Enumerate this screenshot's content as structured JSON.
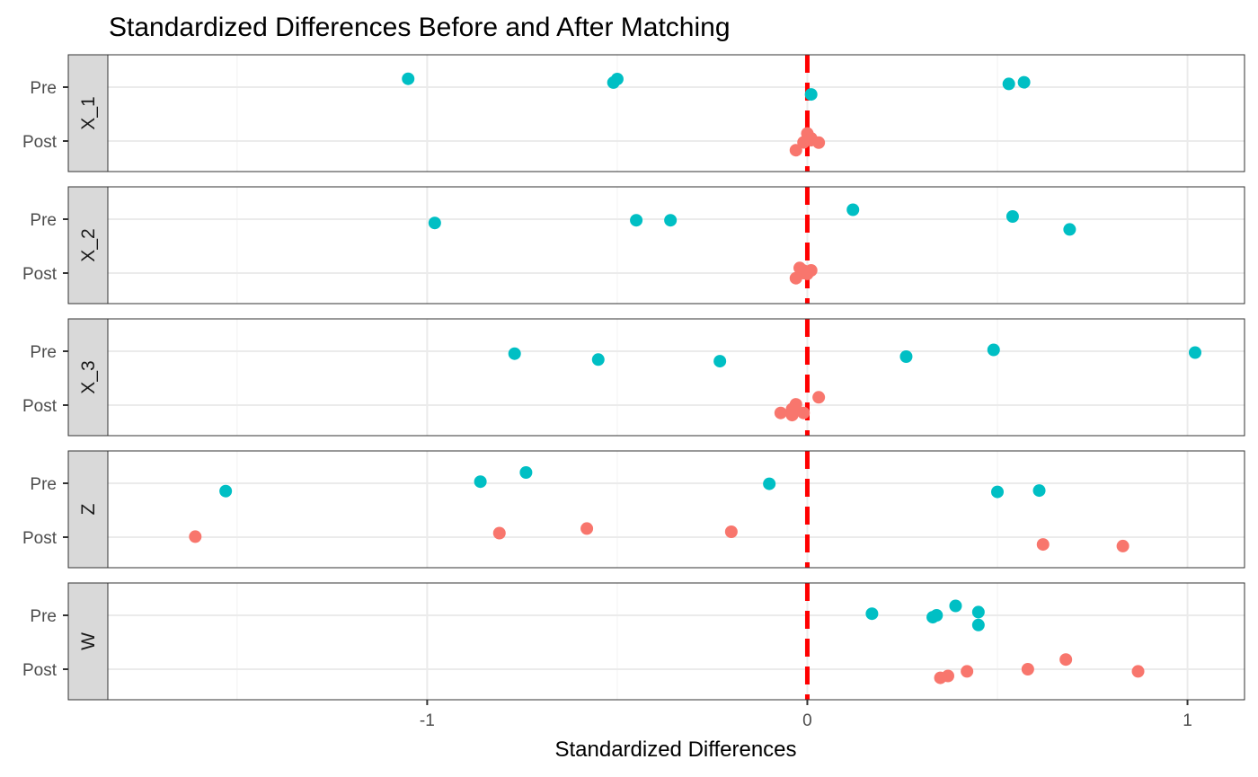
{
  "chart_data": {
    "type": "scatter",
    "title": "Standardized Differences Before and After Matching",
    "xlabel": "Standardized Differences",
    "ylabel": "",
    "xlim": [
      -1.84,
      1.15
    ],
    "x_ticks": [
      -1,
      0,
      1
    ],
    "x_tick_labels": [
      "-1",
      "0",
      "1"
    ],
    "y_levels": [
      "Pre",
      "Post"
    ],
    "reference_line": {
      "x": 0,
      "color": "#ff0000",
      "style": "dashed"
    },
    "grid": true,
    "legend": "none",
    "series_colors": {
      "Pre": "#00bfc4",
      "Post": "#f8766d"
    },
    "panels": [
      {
        "label": "X_1",
        "series": [
          {
            "group": "Pre",
            "points": [
              {
                "x": -1.05,
                "y": 0.31
              },
              {
                "x": -0.5,
                "y": 0.3
              },
              {
                "x": -0.51,
                "y": 0.17
              },
              {
                "x": 0.53,
                "y": 0.12
              },
              {
                "x": 0.57,
                "y": 0.18
              },
              {
                "x": 0.01,
                "y": -0.27
              }
            ]
          },
          {
            "group": "Post",
            "points": [
              {
                "x": 0.0,
                "y": 0.28
              },
              {
                "x": 0.01,
                "y": 0.1
              },
              {
                "x": -0.01,
                "y": -0.05
              },
              {
                "x": 0.01,
                "y": 0.03
              },
              {
                "x": 0.03,
                "y": -0.06
              },
              {
                "x": -0.03,
                "y": -0.34
              }
            ]
          }
        ]
      },
      {
        "label": "X_2",
        "series": [
          {
            "group": "Pre",
            "points": [
              {
                "x": -0.98,
                "y": -0.14
              },
              {
                "x": -0.45,
                "y": -0.04
              },
              {
                "x": -0.36,
                "y": -0.04
              },
              {
                "x": 0.12,
                "y": 0.35
              },
              {
                "x": 0.54,
                "y": 0.1
              },
              {
                "x": 0.69,
                "y": -0.38
              }
            ]
          },
          {
            "group": "Post",
            "points": [
              {
                "x": -0.02,
                "y": 0.19
              },
              {
                "x": -0.01,
                "y": 0.09
              },
              {
                "x": 0.01,
                "y": 0.1
              },
              {
                "x": -0.01,
                "y": 0.0
              },
              {
                "x": 0.0,
                "y": -0.03
              },
              {
                "x": -0.03,
                "y": -0.19
              }
            ]
          }
        ]
      },
      {
        "label": "X_3",
        "series": [
          {
            "group": "Pre",
            "points": [
              {
                "x": -0.77,
                "y": -0.09
              },
              {
                "x": -0.55,
                "y": -0.31
              },
              {
                "x": -0.23,
                "y": -0.37
              },
              {
                "x": 0.26,
                "y": -0.2
              },
              {
                "x": 0.49,
                "y": 0.05
              },
              {
                "x": 1.02,
                "y": -0.05
              }
            ]
          },
          {
            "group": "Post",
            "points": [
              {
                "x": 0.03,
                "y": 0.29
              },
              {
                "x": -0.03,
                "y": 0.03
              },
              {
                "x": -0.04,
                "y": -0.15
              },
              {
                "x": -0.07,
                "y": -0.29
              },
              {
                "x": -0.04,
                "y": -0.37
              },
              {
                "x": -0.01,
                "y": -0.29
              }
            ]
          }
        ]
      },
      {
        "label": "Z",
        "series": [
          {
            "group": "Pre",
            "points": [
              {
                "x": -1.53,
                "y": -0.29
              },
              {
                "x": -0.86,
                "y": 0.06
              },
              {
                "x": -0.74,
                "y": 0.4
              },
              {
                "x": -0.1,
                "y": -0.02
              },
              {
                "x": 0.5,
                "y": -0.32
              },
              {
                "x": 0.61,
                "y": -0.27
              }
            ]
          },
          {
            "group": "Post",
            "points": [
              {
                "x": -1.61,
                "y": 0.02
              },
              {
                "x": -0.81,
                "y": 0.15
              },
              {
                "x": -0.58,
                "y": 0.32
              },
              {
                "x": -0.2,
                "y": 0.2
              },
              {
                "x": 0.62,
                "y": -0.27
              },
              {
                "x": 0.83,
                "y": -0.33
              }
            ]
          }
        ]
      },
      {
        "label": "W",
        "series": [
          {
            "group": "Pre",
            "points": [
              {
                "x": 0.17,
                "y": 0.06
              },
              {
                "x": 0.33,
                "y": -0.07
              },
              {
                "x": 0.34,
                "y": 0.0
              },
              {
                "x": 0.39,
                "y": 0.35
              },
              {
                "x": 0.45,
                "y": 0.12
              },
              {
                "x": 0.45,
                "y": -0.36
              }
            ]
          },
          {
            "group": "Post",
            "points": [
              {
                "x": 0.68,
                "y": 0.36
              },
              {
                "x": 0.58,
                "y": 0.0
              },
              {
                "x": 0.42,
                "y": -0.08
              },
              {
                "x": 0.37,
                "y": -0.25
              },
              {
                "x": 0.35,
                "y": -0.32
              },
              {
                "x": 0.87,
                "y": -0.08
              }
            ]
          }
        ]
      }
    ]
  }
}
